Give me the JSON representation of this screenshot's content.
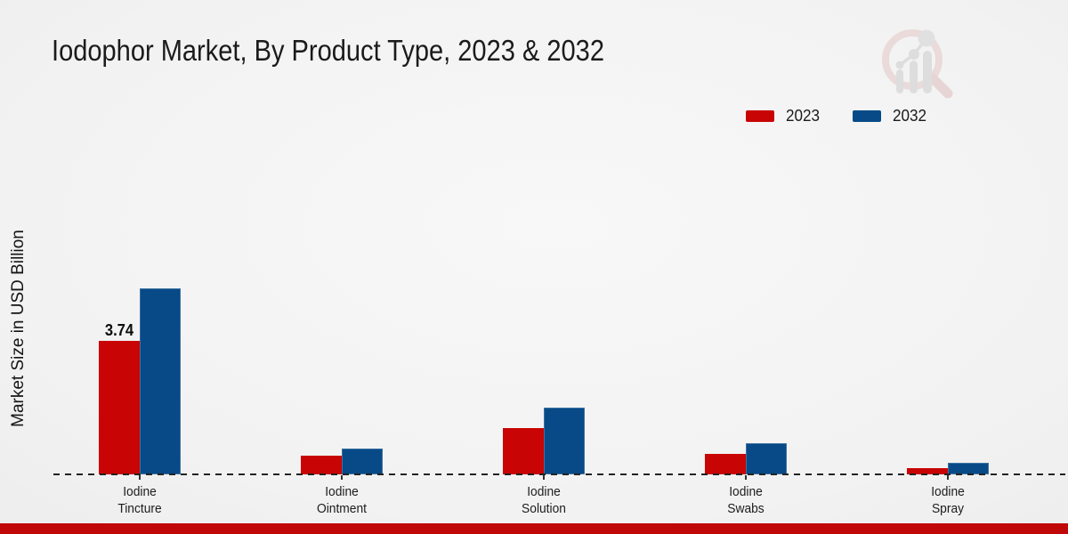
{
  "chart_data": {
    "type": "bar",
    "title": "Iodophor Market, By Product Type, 2023 & 2032",
    "xlabel": "",
    "ylabel": "Market Size in USD Billion",
    "categories": [
      "Iodine Tincture",
      "Iodine Ointment",
      "Iodine Solution",
      "Iodine Swabs",
      "Iodine Spray"
    ],
    "series": [
      {
        "name": "2023",
        "color": "#c80404",
        "values": [
          3.74,
          0.52,
          1.3,
          0.57,
          0.17
        ]
      },
      {
        "name": "2032",
        "color": "#074a87",
        "values": [
          5.21,
          0.72,
          1.87,
          0.87,
          0.32
        ]
      }
    ],
    "value_labels": [
      {
        "series": "2023",
        "category_index": 0,
        "text": "3.74"
      }
    ],
    "ylim": [
      0,
      5.5
    ],
    "grid": false,
    "legend_position": "top-right",
    "baseline_style": "dashed"
  },
  "footer_accent_color": "#c00808",
  "icons": {
    "watermark": "magnifier-bar-chart-logo-icon"
  }
}
